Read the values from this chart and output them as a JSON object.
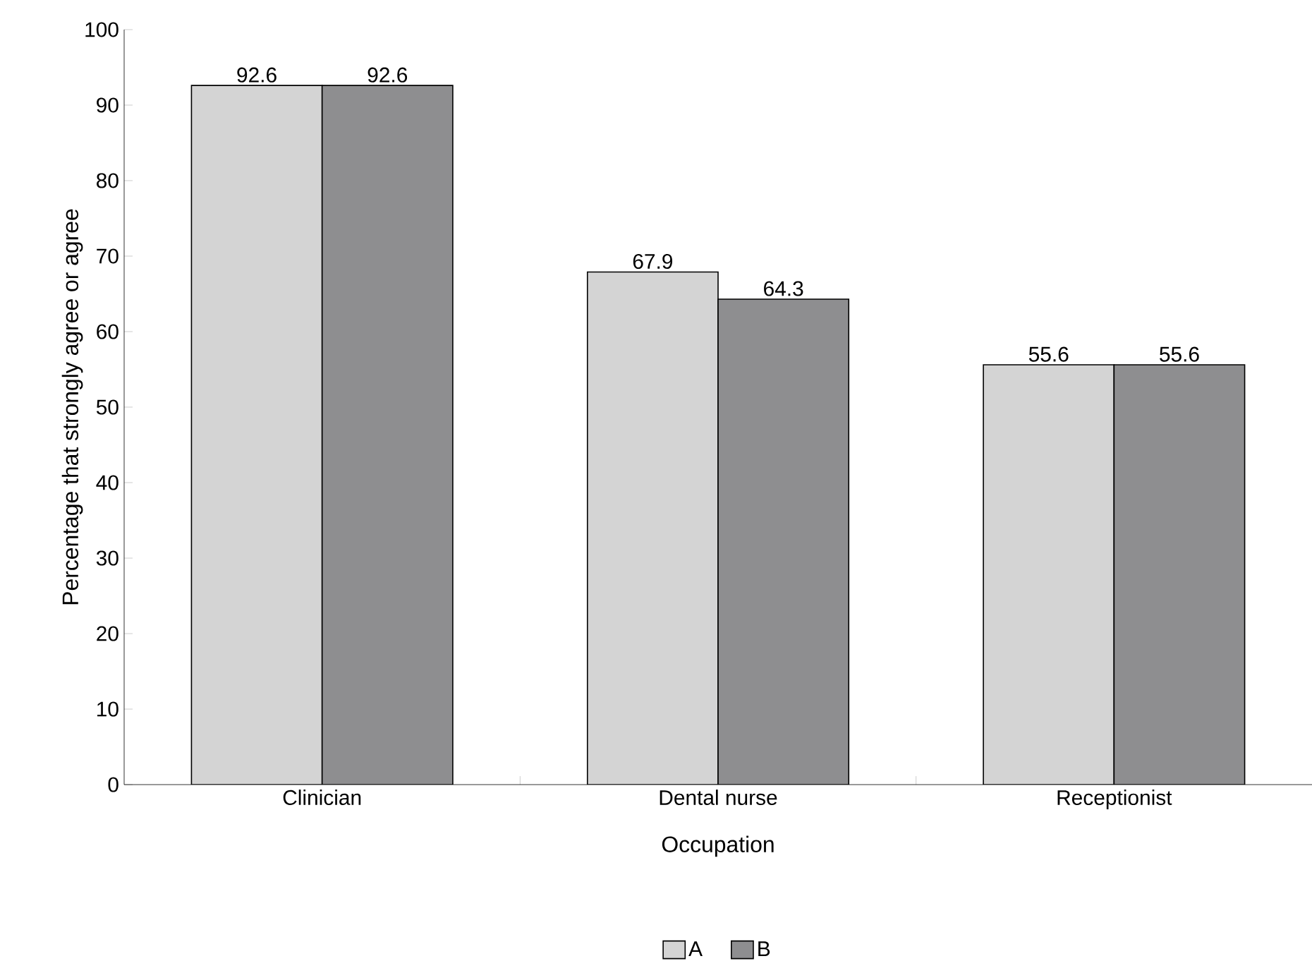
{
  "chart_data": {
    "type": "bar",
    "xlabel": "Occupation",
    "ylabel": "Percentage that strongly agree or agree",
    "categories": [
      "Clinician",
      "Dental nurse",
      "Receptionist"
    ],
    "series": [
      {
        "name": "A",
        "color": "#d4d4d4",
        "values": [
          92.6,
          67.9,
          55.6
        ]
      },
      {
        "name": "B",
        "color": "#8e8e90",
        "values": [
          92.6,
          64.3,
          55.6
        ]
      }
    ],
    "ylim": [
      0,
      100
    ],
    "yticks": [
      0,
      10,
      20,
      30,
      40,
      50,
      60,
      70,
      80,
      90,
      100
    ],
    "data_labels": true,
    "grid": false,
    "legend": "bottom"
  }
}
